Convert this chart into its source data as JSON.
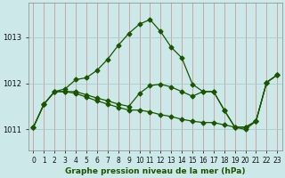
{
  "title": "Graphe pression niveau de la mer (hPa)",
  "bg_color": "#cce8e8",
  "grid_color_v": "#cc9999",
  "grid_color_h": "#aacccc",
  "line_color": "#1a5500",
  "xlim": [
    -0.5,
    23.5
  ],
  "ylim": [
    1010.55,
    1013.75
  ],
  "yticks": [
    1011,
    1012,
    1013
  ],
  "xticks": [
    0,
    1,
    2,
    3,
    4,
    5,
    6,
    7,
    8,
    9,
    10,
    11,
    12,
    13,
    14,
    15,
    16,
    17,
    18,
    19,
    20,
    21,
    22,
    23
  ],
  "line1_x": [
    0,
    1,
    2,
    3,
    4,
    5,
    6,
    7,
    8,
    9,
    10,
    11,
    12,
    13,
    14,
    15,
    16,
    17,
    18,
    19,
    20,
    21,
    22,
    23
  ],
  "line1_y": [
    1011.05,
    1011.55,
    1011.82,
    1011.88,
    1012.08,
    1012.12,
    1012.28,
    1012.52,
    1012.82,
    1013.08,
    1013.28,
    1013.38,
    1013.12,
    1012.78,
    1012.55,
    1011.98,
    1011.82,
    1011.82,
    1011.42,
    1011.05,
    1011.05,
    1011.18,
    1012.02,
    1012.18
  ],
  "line2_x": [
    0,
    1,
    2,
    3,
    4,
    5,
    6,
    7,
    8,
    9,
    10,
    11,
    12,
    13,
    14,
    15,
    16,
    17,
    18,
    19,
    20,
    21,
    22,
    23
  ],
  "line2_y": [
    1011.05,
    1011.55,
    1011.82,
    1011.82,
    1011.82,
    1011.75,
    1011.68,
    1011.62,
    1011.55,
    1011.5,
    1011.78,
    1011.95,
    1011.98,
    1011.92,
    1011.82,
    1011.72,
    1011.82,
    1011.82,
    1011.42,
    1011.05,
    1011.05,
    1011.18,
    1012.02,
    1012.18
  ],
  "line3_x": [
    0,
    1,
    2,
    3,
    4,
    5,
    6,
    7,
    8,
    9,
    10,
    11,
    12,
    13,
    14,
    15,
    16,
    17,
    18,
    19,
    20,
    21,
    22,
    23
  ],
  "line3_y": [
    1011.05,
    1011.55,
    1011.82,
    1011.82,
    1011.78,
    1011.7,
    1011.62,
    1011.55,
    1011.48,
    1011.42,
    1011.42,
    1011.38,
    1011.32,
    1011.28,
    1011.22,
    1011.18,
    1011.15,
    1011.15,
    1011.1,
    1011.05,
    1011.0,
    1011.18,
    1012.02,
    1012.18
  ],
  "tick_fontsize": 5.5,
  "label_fontsize": 6.5
}
